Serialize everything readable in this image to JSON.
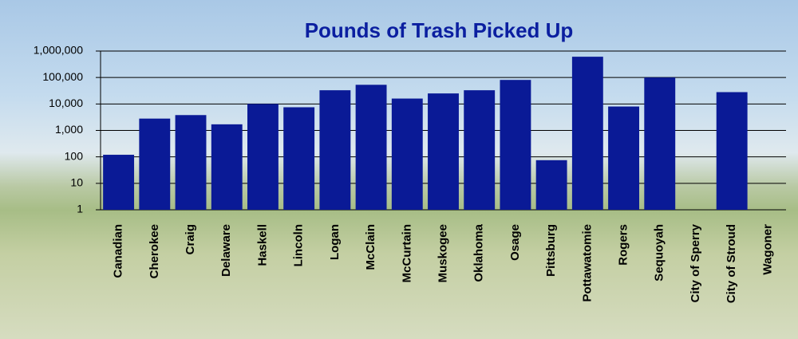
{
  "chart_data": {
    "type": "bar",
    "title": "Pounds of Trash Picked Up",
    "categories": [
      "Canadian",
      "Cherokee",
      "Craig",
      "Delaware",
      "Haskell",
      "Lincoln",
      "Logan",
      "McClain",
      "McCurtain",
      "Muskogee",
      "Oklahoma",
      "Osage",
      "Pittsburg",
      "Pottawatomie",
      "Rogers",
      "Sequoyah",
      "City of Sperry",
      "City of Stroud",
      "Wagoner"
    ],
    "values": [
      120,
      2800,
      3800,
      1700,
      10000,
      7500,
      33000,
      53000,
      16000,
      25000,
      33000,
      81000,
      75,
      610000,
      8000,
      100000,
      null,
      28000,
      null
    ],
    "color": "#0a1a96",
    "log_scale": true,
    "grid": true,
    "ylim": [
      1,
      1000000
    ],
    "yticks": [
      1,
      10,
      100,
      {
        "value": 1000,
        "label": "1,000"
      },
      {
        "value": 10000,
        "label": "10,000"
      },
      {
        "value": 100000,
        "label": "100,000"
      },
      {
        "value": 1000000,
        "label": "1,000,000"
      }
    ]
  }
}
